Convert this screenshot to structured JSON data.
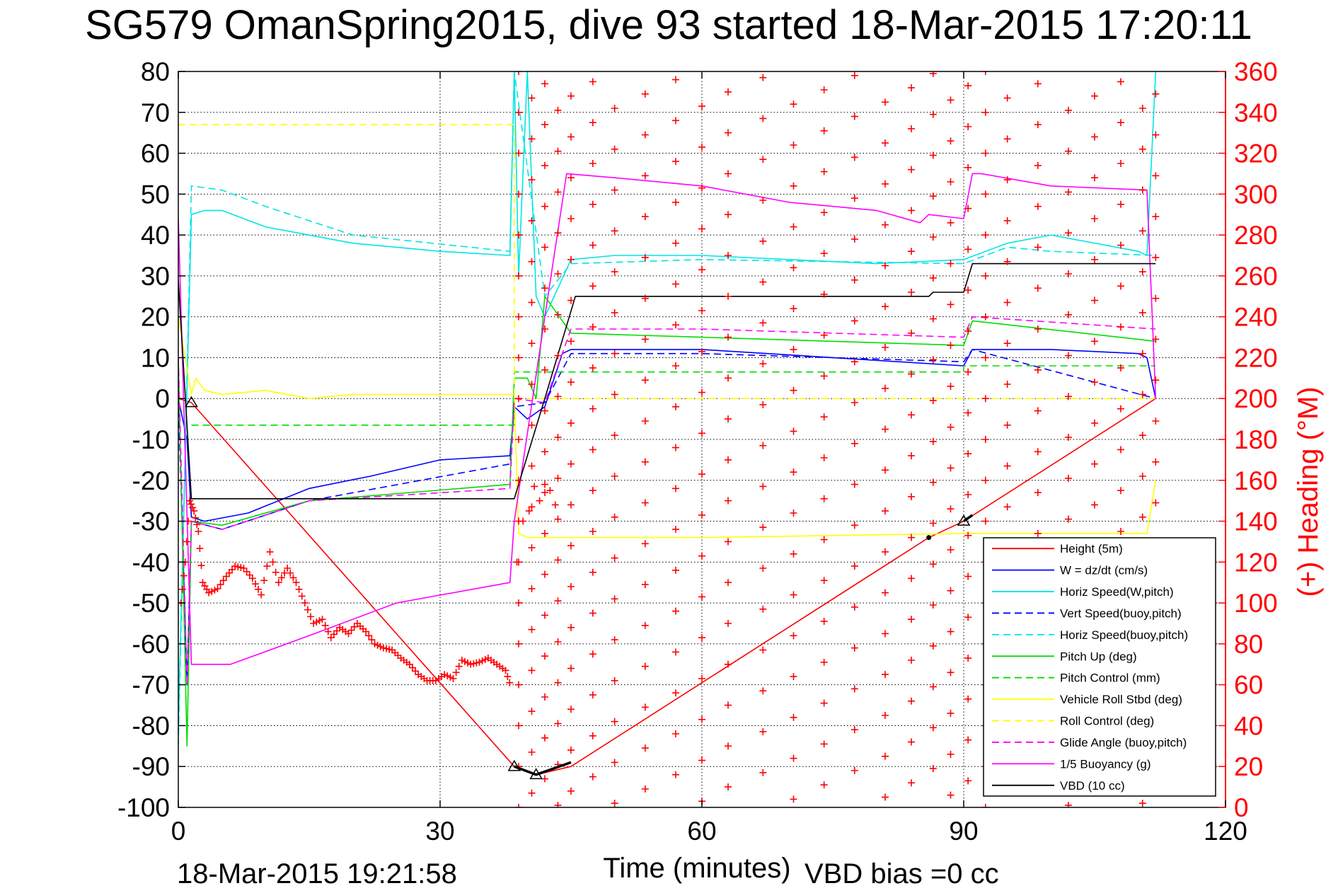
{
  "chart_data": {
    "type": "line",
    "title": "SG579 OmanSpring2015, dive 93 started 18-Mar-2015 17:20:11",
    "xlabel": "Time (minutes)",
    "ylabel": "",
    "ylabel_right": "(+) Heading (°M)",
    "footer_date": "18-Mar-2015 19:21:58",
    "footer_vbd_bias": "VBD bias =0 cc",
    "xlim": [
      0,
      120
    ],
    "ylim": [
      -100,
      80
    ],
    "y2lim": [
      0,
      360
    ],
    "xticks": [
      0,
      30,
      60,
      90,
      120
    ],
    "yticks": [
      80,
      70,
      60,
      50,
      40,
      30,
      20,
      10,
      0,
      -10,
      -20,
      -30,
      -40,
      -50,
      -60,
      -70,
      -80,
      -90,
      -100
    ],
    "y2ticks": [
      360,
      340,
      320,
      300,
      280,
      260,
      240,
      220,
      200,
      180,
      160,
      140,
      120,
      100,
      80,
      60,
      40,
      20,
      0
    ],
    "grid": true,
    "legend_position": "bottom-right",
    "colors": {
      "height": "#ff0000",
      "w": "#0000ff",
      "horiz_speed": "#00e5e5",
      "vert_speed_buoy": "#0000ff",
      "horiz_speed_buoy": "#00e5e5",
      "pitch_up": "#00dd00",
      "pitch_control": "#00dd00",
      "vehicle_roll": "#ffff00",
      "roll_control": "#ffff00",
      "glide_angle": "#ff00ff",
      "buoyancy": "#ff00ff",
      "vbd": "#000000",
      "heading": "#ff0000"
    },
    "series": [
      {
        "key": "height",
        "name": "Height (5m)",
        "style": "solid",
        "x": [
          0,
          1.5,
          38.5,
          41,
          45,
          86,
          90,
          112
        ],
        "y": [
          0,
          -1,
          -90,
          -92,
          -90,
          -34,
          -30,
          0
        ]
      },
      {
        "key": "w",
        "name": "W = dz/dt (cm/s)",
        "style": "solid",
        "x": [
          0,
          1,
          1.5,
          3,
          8,
          15,
          22,
          30,
          38,
          38.5,
          40,
          42,
          44,
          45,
          60,
          75,
          90,
          91,
          100,
          110,
          111,
          112
        ],
        "y": [
          0,
          -10,
          -29,
          -30,
          -28,
          -22,
          -19,
          -15,
          -14,
          -2,
          -5,
          -2,
          11,
          12,
          12,
          10,
          8,
          12,
          12,
          11,
          10,
          0
        ]
      },
      {
        "key": "horiz_speed",
        "name": "Horiz Speed(W,pitch)",
        "style": "solid",
        "x": [
          0,
          1.5,
          3,
          5,
          10,
          20,
          30,
          38,
          38.5,
          39,
          40,
          41,
          42,
          45,
          50,
          60,
          70,
          80,
          90,
          95,
          100,
          110,
          111,
          112
        ],
        "y": [
          -80,
          45,
          46,
          46,
          42,
          38,
          36,
          35,
          80,
          30,
          80,
          25,
          20,
          34,
          35,
          35,
          34,
          33,
          34,
          38,
          40,
          36,
          35,
          80
        ]
      },
      {
        "key": "vert_speed_buoy",
        "name": "Vert Speed(buoy,pitch)",
        "style": "dashed",
        "x": [
          0,
          1,
          1.5,
          5,
          15,
          38,
          38.5,
          42,
          45,
          60,
          90,
          91,
          112
        ],
        "y": [
          0,
          -70,
          -30,
          -32,
          -25,
          -16,
          -2,
          -1,
          11,
          11,
          9,
          12,
          0
        ]
      },
      {
        "key": "horiz_speed_buoy",
        "name": "Horiz Speed(buoy,pitch)",
        "style": "dashed",
        "x": [
          0,
          1.5,
          5,
          10,
          20,
          38,
          38.5,
          42,
          45,
          60,
          90,
          95,
          100,
          112
        ],
        "y": [
          -85,
          52,
          51,
          47,
          40,
          36,
          80,
          25,
          33,
          34,
          33,
          37,
          36,
          35
        ]
      },
      {
        "key": "pitch_up",
        "name": "Pitch Up (deg)",
        "style": "solid",
        "x": [
          0,
          1,
          1.5,
          5,
          15,
          38,
          38.5,
          40,
          41,
          42,
          45,
          60,
          90,
          91,
          112
        ],
        "y": [
          10,
          -85,
          -30,
          -31,
          -25,
          -21,
          5,
          5,
          0,
          25,
          16,
          15,
          13,
          19,
          14
        ]
      },
      {
        "key": "pitch_control",
        "name": "Pitch Control (mm)",
        "style": "dashed",
        "x": [
          1.5,
          38.5,
          38.5,
          90,
          90,
          112
        ],
        "y": [
          -6.5,
          -6.5,
          6.5,
          6.5,
          8,
          8
        ]
      },
      {
        "key": "vehicle_roll",
        "name": "Vehicle Roll Stbd (deg)",
        "style": "solid",
        "x": [
          0,
          1.5,
          2,
          3,
          5,
          10,
          15,
          20,
          38.5,
          39,
          40,
          60,
          90,
          111,
          112
        ],
        "y": [
          20,
          1,
          5,
          2,
          1,
          2,
          0,
          1,
          1,
          -33,
          -34,
          -34,
          -33,
          -33,
          -20
        ]
      },
      {
        "key": "roll_control",
        "name": "Roll Control (deg)",
        "style": "dashed",
        "x": [
          0,
          38.5,
          38.5,
          112
        ],
        "y": [
          67,
          67,
          0,
          0
        ]
      },
      {
        "key": "glide_angle",
        "name": "Glide Angle (buoy,pitch)",
        "style": "dashed",
        "x": [
          0,
          1,
          1.5,
          5,
          15,
          38,
          38.5,
          42,
          45,
          60,
          90,
          91,
          112
        ],
        "y": [
          10,
          -70,
          -30,
          -32,
          -25,
          -22,
          0,
          -1,
          17,
          17,
          15,
          20,
          17
        ]
      },
      {
        "key": "buoyancy",
        "name": "1/5 Buoyancy (g)",
        "style": "solid",
        "x": [
          0,
          1.5,
          6,
          15,
          25,
          38,
          38.5,
          42,
          44.5,
          50,
          60,
          70,
          80,
          85,
          86,
          90,
          91,
          92,
          100,
          111,
          112
        ],
        "y": [
          44,
          -65,
          -65,
          -58,
          -50,
          -45,
          -30,
          20,
          55,
          54,
          52,
          48,
          46,
          43,
          45,
          44,
          55,
          55,
          52,
          51,
          0
        ]
      },
      {
        "key": "vbd",
        "name": "VBD (10 cc)",
        "style": "solid",
        "x": [
          0,
          1.5,
          38.5,
          42,
          45.5,
          86,
          86.5,
          90,
          91,
          112
        ],
        "y": [
          29,
          -24.5,
          -24.5,
          0,
          25,
          25,
          26,
          26,
          33,
          33
        ]
      }
    ],
    "legend_order": [
      "height",
      "w",
      "horiz_speed",
      "vert_speed_buoy",
      "horiz_speed_buoy",
      "pitch_up",
      "pitch_control",
      "vehicle_roll",
      "roll_control",
      "glide_angle",
      "buoyancy",
      "vbd"
    ],
    "heading_dive": {
      "x": [
        0.3,
        0.8,
        1.3,
        1.8,
        2.3,
        2.8,
        3.5,
        4.5,
        5.5,
        6.5,
        7.5,
        8.5,
        9.5,
        10.5,
        11.5,
        12.5,
        13.5,
        14.5,
        15.5,
        16.5,
        17.5,
        18.5,
        19.5,
        20.5,
        21.5,
        22.5,
        23.5,
        24.5,
        25.5,
        26.5,
        27.5,
        28.5,
        29.5,
        30.5,
        31.5,
        32.5,
        33.5,
        34.5,
        35.5,
        36.5,
        37.5,
        38.2
      ],
      "y": [
        100,
        120,
        150,
        145,
        135,
        110,
        105,
        107,
        113,
        118,
        117,
        112,
        104,
        125,
        110,
        117,
        110,
        100,
        90,
        92,
        83,
        88,
        85,
        90,
        86,
        80,
        78,
        77,
        73,
        70,
        65,
        62,
        62,
        65,
        63,
        72,
        70,
        71,
        73,
        70,
        67,
        58
      ]
    },
    "heading_climb_start": {
      "x": [
        38.8,
        39.5,
        40.2,
        40.8,
        41.4,
        42.0,
        42.6,
        43.2
      ],
      "y": [
        120,
        140,
        145,
        157,
        150,
        158,
        155,
        148
      ]
    },
    "heading_climb_columns_x": [
      39,
      40.5,
      42,
      43.5,
      45,
      47.5,
      50,
      53.5,
      57,
      60,
      63,
      67,
      70.5,
      74,
      77.5,
      81,
      84,
      86.5,
      88.5,
      90.5,
      92.5,
      95,
      98.5,
      102,
      105,
      108,
      110.5,
      112
    ],
    "markers": {
      "x": [
        1.5,
        38.5,
        41,
        90
      ],
      "y": [
        -1,
        -90,
        -92,
        -30
      ]
    },
    "dot_markers": {
      "x": [
        86
      ],
      "y": [
        -34
      ]
    },
    "black_segments": [
      {
        "x": [
          38.5,
          41,
          45
        ],
        "y": [
          -90,
          -92,
          -89
        ]
      },
      {
        "x": [
          90,
          91
        ],
        "y": [
          -30,
          -28.5
        ]
      }
    ]
  }
}
